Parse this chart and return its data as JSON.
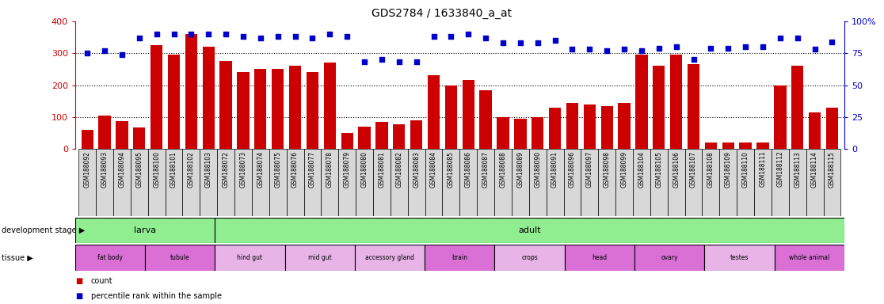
{
  "title": "GDS2784 / 1633840_a_at",
  "samples": [
    "GSM188092",
    "GSM188093",
    "GSM188094",
    "GSM188095",
    "GSM188100",
    "GSM188101",
    "GSM188102",
    "GSM188103",
    "GSM188072",
    "GSM188073",
    "GSM188074",
    "GSM188075",
    "GSM188076",
    "GSM188077",
    "GSM188078",
    "GSM188079",
    "GSM188080",
    "GSM188081",
    "GSM188082",
    "GSM188083",
    "GSM188084",
    "GSM188085",
    "GSM188086",
    "GSM188087",
    "GSM188088",
    "GSM188089",
    "GSM188090",
    "GSM188091",
    "GSM188096",
    "GSM188097",
    "GSM188098",
    "GSM188099",
    "GSM188104",
    "GSM188105",
    "GSM188106",
    "GSM188107",
    "GSM188108",
    "GSM188109",
    "GSM188110",
    "GSM188111",
    "GSM188112",
    "GSM188113",
    "GSM188114",
    "GSM188115"
  ],
  "counts": [
    60,
    105,
    88,
    68,
    325,
    295,
    360,
    320,
    275,
    240,
    250,
    250,
    260,
    240,
    270,
    50,
    70,
    85,
    78,
    90,
    230,
    200,
    215,
    185,
    100,
    95,
    100,
    130,
    145,
    140,
    135,
    145,
    295,
    260,
    295,
    265,
    20,
    20,
    20,
    20,
    200,
    260,
    115,
    130
  ],
  "percentiles": [
    75,
    77,
    74,
    87,
    90,
    90,
    90,
    90,
    90,
    88,
    87,
    88,
    88,
    87,
    90,
    88,
    68,
    70,
    68,
    68,
    88,
    88,
    90,
    87,
    83,
    83,
    83,
    85,
    78,
    78,
    77,
    78,
    77,
    79,
    80,
    70,
    79,
    79,
    80,
    80,
    87,
    87,
    78,
    84
  ],
  "dev_stage_groups": [
    {
      "label": "larva",
      "start": 0,
      "end": 8,
      "color": "#90ee90"
    },
    {
      "label": "adult",
      "start": 8,
      "end": 44,
      "color": "#90ee90"
    }
  ],
  "tissue_groups": [
    {
      "label": "fat body",
      "start": 0,
      "end": 4,
      "color": "#da70d6"
    },
    {
      "label": "tubule",
      "start": 4,
      "end": 8,
      "color": "#da70d6"
    },
    {
      "label": "hind gut",
      "start": 8,
      "end": 12,
      "color": "#e8b4e8"
    },
    {
      "label": "mid gut",
      "start": 12,
      "end": 16,
      "color": "#e8b4e8"
    },
    {
      "label": "accessory gland",
      "start": 16,
      "end": 20,
      "color": "#e8b4e8"
    },
    {
      "label": "brain",
      "start": 20,
      "end": 24,
      "color": "#da70d6"
    },
    {
      "label": "crops",
      "start": 24,
      "end": 28,
      "color": "#e8b4e8"
    },
    {
      "label": "head",
      "start": 28,
      "end": 32,
      "color": "#da70d6"
    },
    {
      "label": "ovary",
      "start": 32,
      "end": 36,
      "color": "#da70d6"
    },
    {
      "label": "testes",
      "start": 36,
      "end": 40,
      "color": "#e8b4e8"
    },
    {
      "label": "whole animal",
      "start": 40,
      "end": 44,
      "color": "#da70d6"
    }
  ],
  "bar_color": "#cc0000",
  "dot_color": "#0000cc",
  "ylim_left": [
    0,
    400
  ],
  "ylim_right": [
    0,
    100
  ],
  "yticks_left": [
    0,
    100,
    200,
    300,
    400
  ],
  "yticks_right": [
    0,
    25,
    50,
    75,
    100
  ],
  "yticklabels_right": [
    "0",
    "25",
    "50",
    "75",
    "100%"
  ],
  "sample_bg_color": "#d8d8d8",
  "left_axis_color": "#cc0000",
  "right_axis_color": "#0000cc"
}
